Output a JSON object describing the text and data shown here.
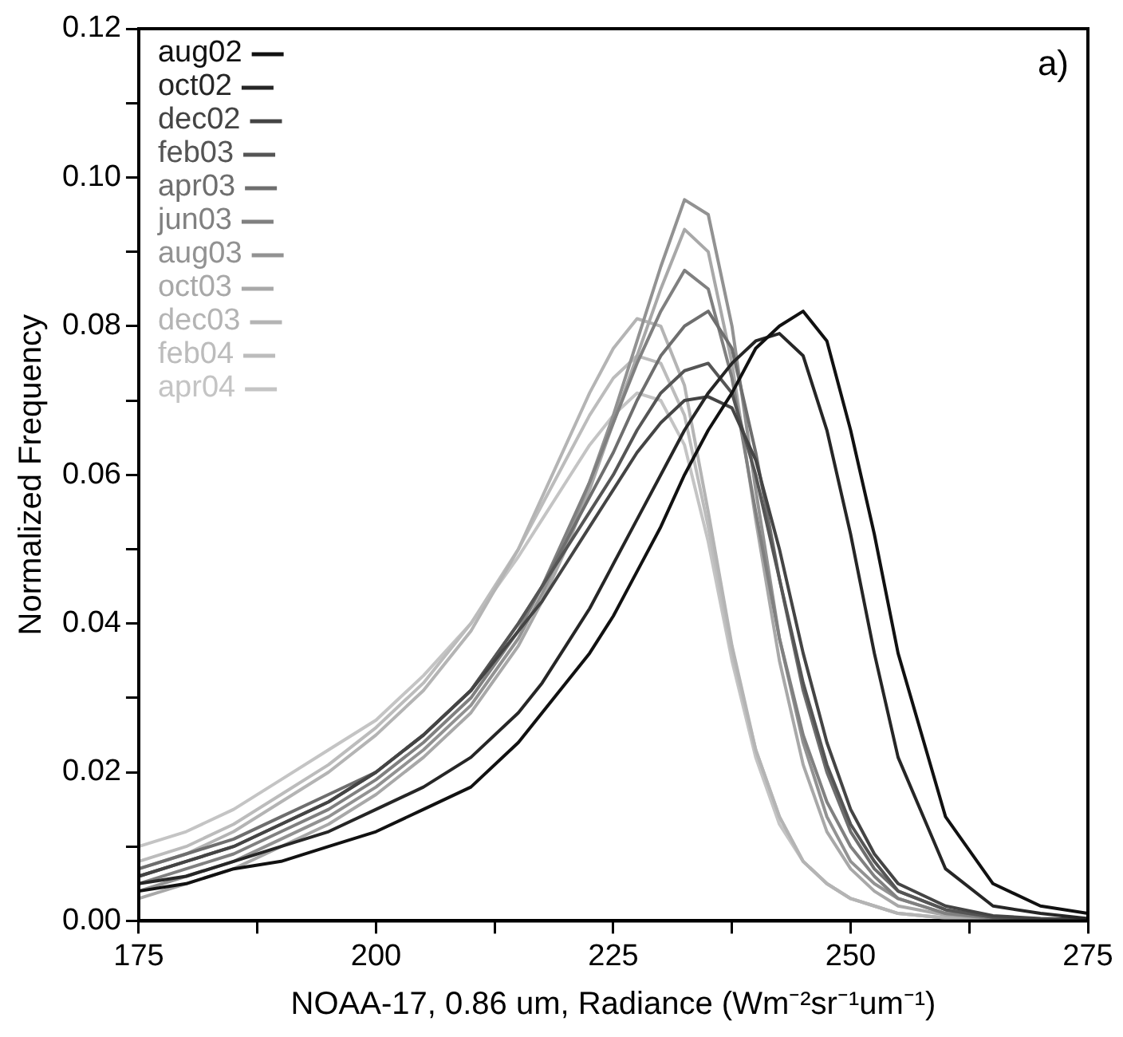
{
  "chart_data": {
    "type": "line",
    "xlabel": "NOAA-17, 0.86 um, Radiance (Wm⁻²sr⁻¹um⁻¹)",
    "ylabel": "Normalized Frequency",
    "annotations": [
      "a)"
    ],
    "x": [
      175,
      180,
      185,
      190,
      195,
      200,
      205,
      210,
      215,
      217.5,
      220,
      222.5,
      225,
      227.5,
      230,
      232.5,
      235,
      237.5,
      240,
      242.5,
      245,
      247.5,
      250,
      252.5,
      255,
      260,
      265,
      270,
      275
    ],
    "xlim": [
      175,
      275
    ],
    "xticks": [
      175,
      {
        "value": 187.5,
        "label": null
      },
      200,
      {
        "value": 212.5,
        "label": null
      },
      225,
      {
        "value": 237.5,
        "label": null
      },
      250,
      {
        "value": 262.5,
        "label": null
      },
      275
    ],
    "ylim": [
      0,
      0.12
    ],
    "yticks": [
      {
        "value": 0,
        "label": "0.00"
      },
      {
        "value": 0.01,
        "label": null
      },
      {
        "value": 0.02,
        "label": "0.02"
      },
      {
        "value": 0.03,
        "label": null
      },
      {
        "value": 0.04,
        "label": "0.04"
      },
      {
        "value": 0.05,
        "label": null
      },
      {
        "value": 0.06,
        "label": "0.06"
      },
      {
        "value": 0.07,
        "label": null
      },
      {
        "value": 0.08,
        "label": "0.08"
      },
      {
        "value": 0.09,
        "label": null
      },
      {
        "value": 0.1,
        "label": "0.10"
      },
      {
        "value": 0.11,
        "label": null
      },
      {
        "value": 0.12,
        "label": "0.12"
      }
    ],
    "grid": false,
    "legend": "top left",
    "marker": "none",
    "line_style": "solid",
    "series": [
      {
        "name": "aug02",
        "color": "#111111",
        "values": [
          0.004,
          0.005,
          0.007,
          0.008,
          0.01,
          0.012,
          0.015,
          0.018,
          0.024,
          0.028,
          0.032,
          0.036,
          0.041,
          0.047,
          0.053,
          0.06,
          0.066,
          0.071,
          0.077,
          0.08,
          0.082,
          0.078,
          0.066,
          0.052,
          0.036,
          0.014,
          0.005,
          0.002,
          0.001
        ]
      },
      {
        "name": "oct02",
        "color": "#262626",
        "values": [
          0.005,
          0.006,
          0.008,
          0.01,
          0.012,
          0.015,
          0.018,
          0.022,
          0.028,
          0.032,
          0.037,
          0.042,
          0.048,
          0.054,
          0.06,
          0.066,
          0.071,
          0.075,
          0.078,
          0.079,
          0.076,
          0.066,
          0.052,
          0.036,
          0.022,
          0.007,
          0.002,
          0.001,
          0.0003
        ]
      },
      {
        "name": "dec02",
        "color": "#444444",
        "values": [
          0.006,
          0.008,
          0.01,
          0.013,
          0.016,
          0.02,
          0.025,
          0.031,
          0.039,
          0.043,
          0.048,
          0.053,
          0.058,
          0.063,
          0.067,
          0.07,
          0.0705,
          0.069,
          0.062,
          0.05,
          0.036,
          0.024,
          0.015,
          0.009,
          0.005,
          0.002,
          0.0007,
          0.0003,
          0.0002
        ]
      },
      {
        "name": "feb03",
        "color": "#555555",
        "values": [
          0.006,
          0.008,
          0.01,
          0.013,
          0.016,
          0.02,
          0.025,
          0.031,
          0.04,
          0.045,
          0.05,
          0.055,
          0.06,
          0.066,
          0.071,
          0.074,
          0.075,
          0.071,
          0.06,
          0.046,
          0.032,
          0.021,
          0.013,
          0.008,
          0.004,
          0.0015,
          0.0005,
          0.0002,
          0.0001
        ]
      },
      {
        "name": "apr03",
        "color": "#6e6e6e",
        "values": [
          0.007,
          0.009,
          0.011,
          0.014,
          0.017,
          0.02,
          0.025,
          0.031,
          0.04,
          0.045,
          0.051,
          0.057,
          0.063,
          0.07,
          0.076,
          0.08,
          0.082,
          0.077,
          0.063,
          0.046,
          0.031,
          0.02,
          0.012,
          0.007,
          0.004,
          0.0015,
          0.0005,
          0.0002,
          0.0001
        ]
      },
      {
        "name": "jun03",
        "color": "#808080",
        "values": [
          0.005,
          0.007,
          0.009,
          0.012,
          0.015,
          0.019,
          0.024,
          0.03,
          0.039,
          0.045,
          0.052,
          0.059,
          0.067,
          0.075,
          0.082,
          0.0875,
          0.085,
          0.073,
          0.055,
          0.038,
          0.025,
          0.016,
          0.01,
          0.006,
          0.003,
          0.001,
          0.0004,
          0.0002,
          0.0001
        ]
      },
      {
        "name": "aug03",
        "color": "#929292",
        "values": [
          0.004,
          0.006,
          0.008,
          0.011,
          0.014,
          0.018,
          0.023,
          0.029,
          0.038,
          0.044,
          0.051,
          0.059,
          0.068,
          0.078,
          0.088,
          0.097,
          0.095,
          0.08,
          0.058,
          0.038,
          0.024,
          0.014,
          0.008,
          0.005,
          0.003,
          0.001,
          0.0003,
          0.0001,
          0.0001
        ]
      },
      {
        "name": "oct03",
        "color": "#a8a8a8",
        "values": [
          0.003,
          0.005,
          0.007,
          0.01,
          0.013,
          0.017,
          0.022,
          0.028,
          0.037,
          0.043,
          0.05,
          0.058,
          0.067,
          0.076,
          0.085,
          0.093,
          0.09,
          0.075,
          0.054,
          0.035,
          0.021,
          0.012,
          0.007,
          0.004,
          0.002,
          0.0008,
          0.0003,
          0.0001,
          0.0001
        ]
      },
      {
        "name": "dec03",
        "color": "#b4b4b4",
        "values": [
          0.007,
          0.009,
          0.012,
          0.016,
          0.02,
          0.025,
          0.031,
          0.039,
          0.05,
          0.057,
          0.064,
          0.071,
          0.077,
          0.081,
          0.08,
          0.072,
          0.055,
          0.037,
          0.023,
          0.014,
          0.008,
          0.005,
          0.003,
          0.002,
          0.001,
          0.0004,
          0.0001,
          0.0001,
          0.0001
        ]
      },
      {
        "name": "feb04",
        "color": "#bcbcbc",
        "values": [
          0.008,
          0.01,
          0.013,
          0.017,
          0.021,
          0.026,
          0.032,
          0.04,
          0.05,
          0.056,
          0.062,
          0.068,
          0.073,
          0.076,
          0.075,
          0.068,
          0.053,
          0.036,
          0.023,
          0.014,
          0.008,
          0.005,
          0.003,
          0.002,
          0.001,
          0.0004,
          0.0001,
          0.0001,
          0.0001
        ]
      },
      {
        "name": "apr04",
        "color": "#c4c4c4",
        "values": [
          0.01,
          0.012,
          0.015,
          0.019,
          0.023,
          0.027,
          0.033,
          0.04,
          0.049,
          0.054,
          0.059,
          0.064,
          0.068,
          0.071,
          0.07,
          0.064,
          0.051,
          0.035,
          0.022,
          0.013,
          0.008,
          0.005,
          0.003,
          0.002,
          0.001,
          0.0004,
          0.0001,
          0.0001,
          0.0001
        ]
      }
    ]
  }
}
